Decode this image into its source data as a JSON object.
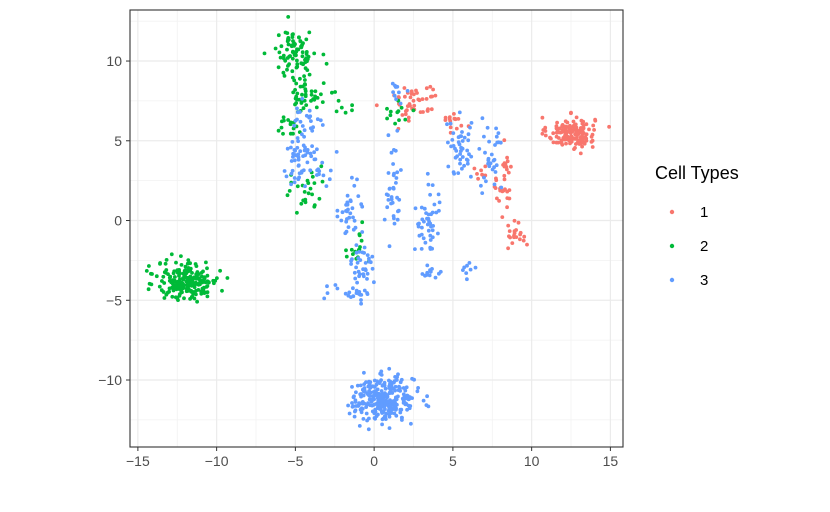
{
  "chart_data": {
    "type": "scatter",
    "title": "",
    "xlabel": "",
    "ylabel": "",
    "xlim": [
      -15.5,
      15.8
    ],
    "ylim": [
      -14.2,
      13.2
    ],
    "x_ticks": [
      -15,
      -10,
      -5,
      0,
      5,
      10,
      15
    ],
    "x_tick_labels": [
      "−15",
      "−10",
      "−5",
      "0",
      "5",
      "10",
      "15"
    ],
    "y_ticks": [
      -10,
      -5,
      0,
      5,
      10
    ],
    "y_tick_labels": [
      "−10",
      "−5",
      "0",
      "5",
      "10"
    ],
    "grid": true,
    "legend": {
      "title": "Cell Types",
      "position": "right",
      "entries": [
        {
          "label": "1",
          "color": "#F8766D"
        },
        {
          "label": "2",
          "color": "#00BA38"
        },
        {
          "label": "3",
          "color": "#619CFF"
        }
      ]
    },
    "series": [
      {
        "name": "1",
        "color": "#F8766D",
        "clusters": [
          {
            "cx": 12.5,
            "cy": 5.5,
            "sx": 1.0,
            "sy": 0.65,
            "n": 150
          },
          {
            "cx": 2.5,
            "cy": 7.5,
            "sx": 1.1,
            "sy": 0.9,
            "n": 45
          },
          {
            "cx": 5.2,
            "cy": 6.3,
            "sx": 0.6,
            "sy": 0.5,
            "n": 15
          },
          {
            "cx": 8.3,
            "cy": 2.0,
            "sx": 0.35,
            "sy": 1.5,
            "n": 30
          },
          {
            "cx": 9.0,
            "cy": -0.8,
            "sx": 0.45,
            "sy": 0.55,
            "n": 20
          },
          {
            "cx": 7.0,
            "cy": 3.0,
            "sx": 0.6,
            "sy": 0.4,
            "n": 10
          }
        ]
      },
      {
        "name": "2",
        "color": "#00BA38",
        "clusters": [
          {
            "cx": -11.8,
            "cy": -3.8,
            "sx": 1.3,
            "sy": 0.8,
            "n": 220
          },
          {
            "cx": -5.0,
            "cy": 10.5,
            "sx": 0.9,
            "sy": 1.0,
            "n": 85
          },
          {
            "cx": -4.5,
            "cy": 8.0,
            "sx": 0.6,
            "sy": 0.8,
            "n": 35
          },
          {
            "cx": -3.0,
            "cy": 7.5,
            "sx": 1.0,
            "sy": 0.5,
            "n": 15
          },
          {
            "cx": -5.5,
            "cy": 6.0,
            "sx": 0.6,
            "sy": 0.4,
            "n": 15
          },
          {
            "cx": -4.3,
            "cy": 1.5,
            "sx": 0.9,
            "sy": 1.0,
            "n": 25
          },
          {
            "cx": -1.2,
            "cy": -1.5,
            "sx": 0.5,
            "sy": 1.2,
            "n": 15
          },
          {
            "cx": 1.8,
            "cy": 6.8,
            "sx": 0.8,
            "sy": 0.6,
            "n": 12
          }
        ]
      },
      {
        "name": "3",
        "color": "#619CFF",
        "clusters": [
          {
            "cx": 0.6,
            "cy": -11.2,
            "sx": 1.3,
            "sy": 0.9,
            "n": 300
          },
          {
            "cx": -4.5,
            "cy": 3.5,
            "sx": 1.1,
            "sy": 1.2,
            "n": 60
          },
          {
            "cx": -4.2,
            "cy": 6.3,
            "sx": 0.6,
            "sy": 0.8,
            "n": 25
          },
          {
            "cx": -1.5,
            "cy": 0.5,
            "sx": 0.5,
            "sy": 1.3,
            "n": 35
          },
          {
            "cx": -0.8,
            "cy": -3.0,
            "sx": 0.5,
            "sy": 1.3,
            "n": 35
          },
          {
            "cx": -1.5,
            "cy": -4.5,
            "sx": 0.9,
            "sy": 0.3,
            "n": 20
          },
          {
            "cx": 1.2,
            "cy": 2.0,
            "sx": 0.35,
            "sy": 2.0,
            "n": 35
          },
          {
            "cx": 3.5,
            "cy": 0.0,
            "sx": 0.6,
            "sy": 1.5,
            "n": 45
          },
          {
            "cx": 5.5,
            "cy": 4.5,
            "sx": 0.6,
            "sy": 1.3,
            "n": 45
          },
          {
            "cx": 7.5,
            "cy": 4.0,
            "sx": 0.5,
            "sy": 1.5,
            "n": 30
          },
          {
            "cx": 6.0,
            "cy": -3.0,
            "sx": 0.3,
            "sy": 0.3,
            "n": 8
          },
          {
            "cx": 3.5,
            "cy": -3.4,
            "sx": 0.5,
            "sy": 0.25,
            "n": 12
          },
          {
            "cx": 1.5,
            "cy": 8.0,
            "sx": 0.5,
            "sy": 0.6,
            "n": 10
          }
        ]
      }
    ]
  }
}
